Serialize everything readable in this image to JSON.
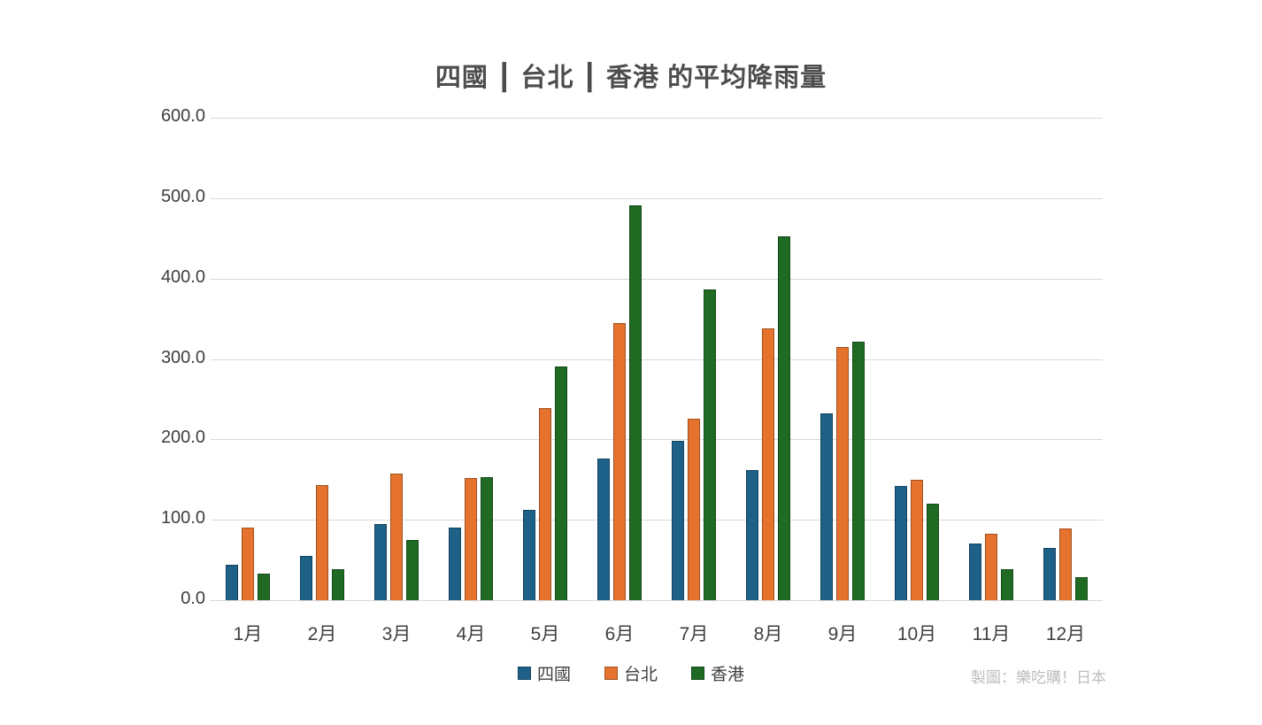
{
  "chart_data": {
    "type": "bar",
    "title": "四國 ┃ 台北 ┃ 香港 的平均降雨量",
    "xlabel": "",
    "ylabel": "",
    "ylim": [
      0,
      600
    ],
    "ytick_step": 100,
    "ytick_decimals": 1,
    "grid": true,
    "legend_position": "bottom",
    "categories": [
      "1月",
      "2月",
      "3月",
      "4月",
      "5月",
      "6月",
      "7月",
      "8月",
      "9月",
      "10月",
      "11月",
      "12月"
    ],
    "series": [
      {
        "name": "四國",
        "color": "#1E6188",
        "values": [
          44,
          55,
          95,
          90,
          112,
          176,
          198,
          162,
          232,
          142,
          70,
          65
        ]
      },
      {
        "name": "台北",
        "color": "#E5732E",
        "values": [
          90,
          143,
          157,
          152,
          239,
          345,
          226,
          338,
          315,
          150,
          83,
          89
        ]
      },
      {
        "name": "香港",
        "color": "#1F6B24",
        "values": [
          33,
          38,
          75,
          153,
          291,
          491,
          386,
          453,
          321,
          120,
          39,
          29
        ]
      }
    ],
    "colors": {
      "gridline": "#D9D9D9",
      "title_text": "#4D4D4D",
      "axis_text": "#3F3F3F",
      "credit_text": "#BDBDBD",
      "background": "#FFFFFF"
    }
  },
  "footer": {
    "credit": "製圖：樂吃購！日本"
  }
}
